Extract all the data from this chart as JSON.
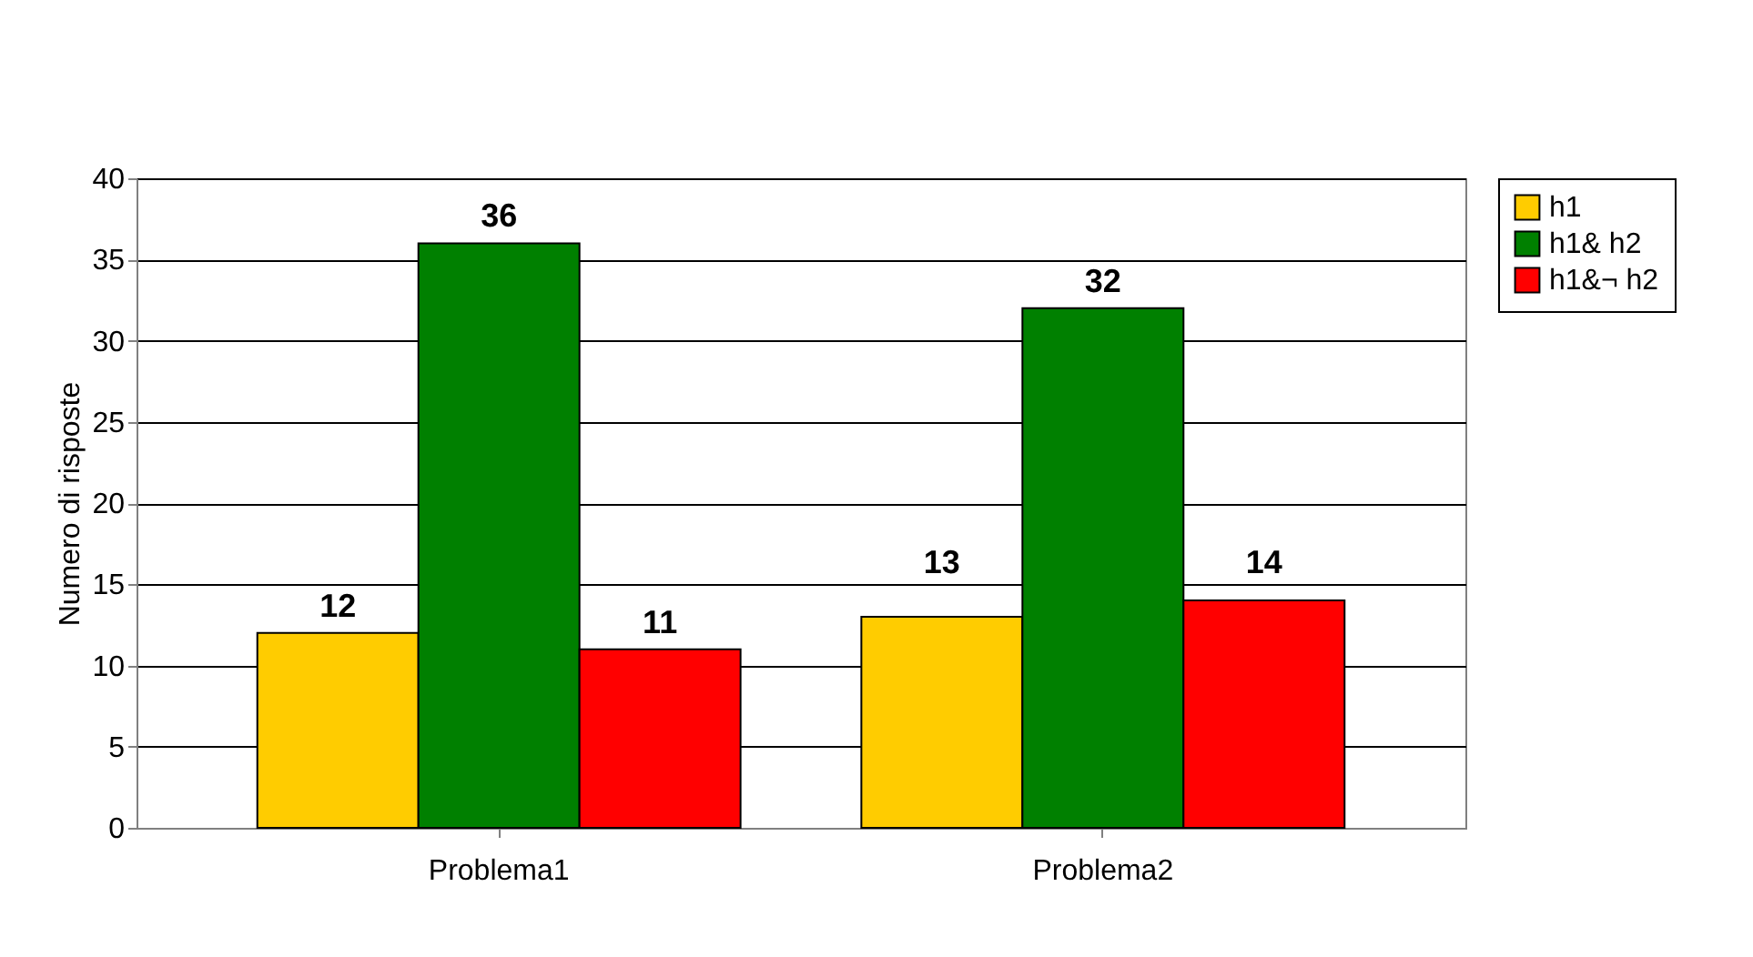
{
  "chart_data": {
    "type": "bar",
    "ylabel": "Numero di risposte",
    "categories": [
      "Problema1",
      "Problema2"
    ],
    "series": [
      {
        "name": "h1",
        "color": "#ffcc00",
        "values": [
          12,
          13
        ]
      },
      {
        "name": "h1& h2",
        "color": "#008000",
        "values": [
          36,
          32
        ]
      },
      {
        "name": "h1&¬ h2",
        "color": "#ff0000",
        "values": [
          11,
          14
        ]
      }
    ],
    "ylim": [
      0,
      40
    ],
    "yticks": [
      0,
      5,
      10,
      15,
      20,
      25,
      30,
      35,
      40
    ],
    "grid": "y",
    "legend": "right",
    "data_labels": true
  }
}
